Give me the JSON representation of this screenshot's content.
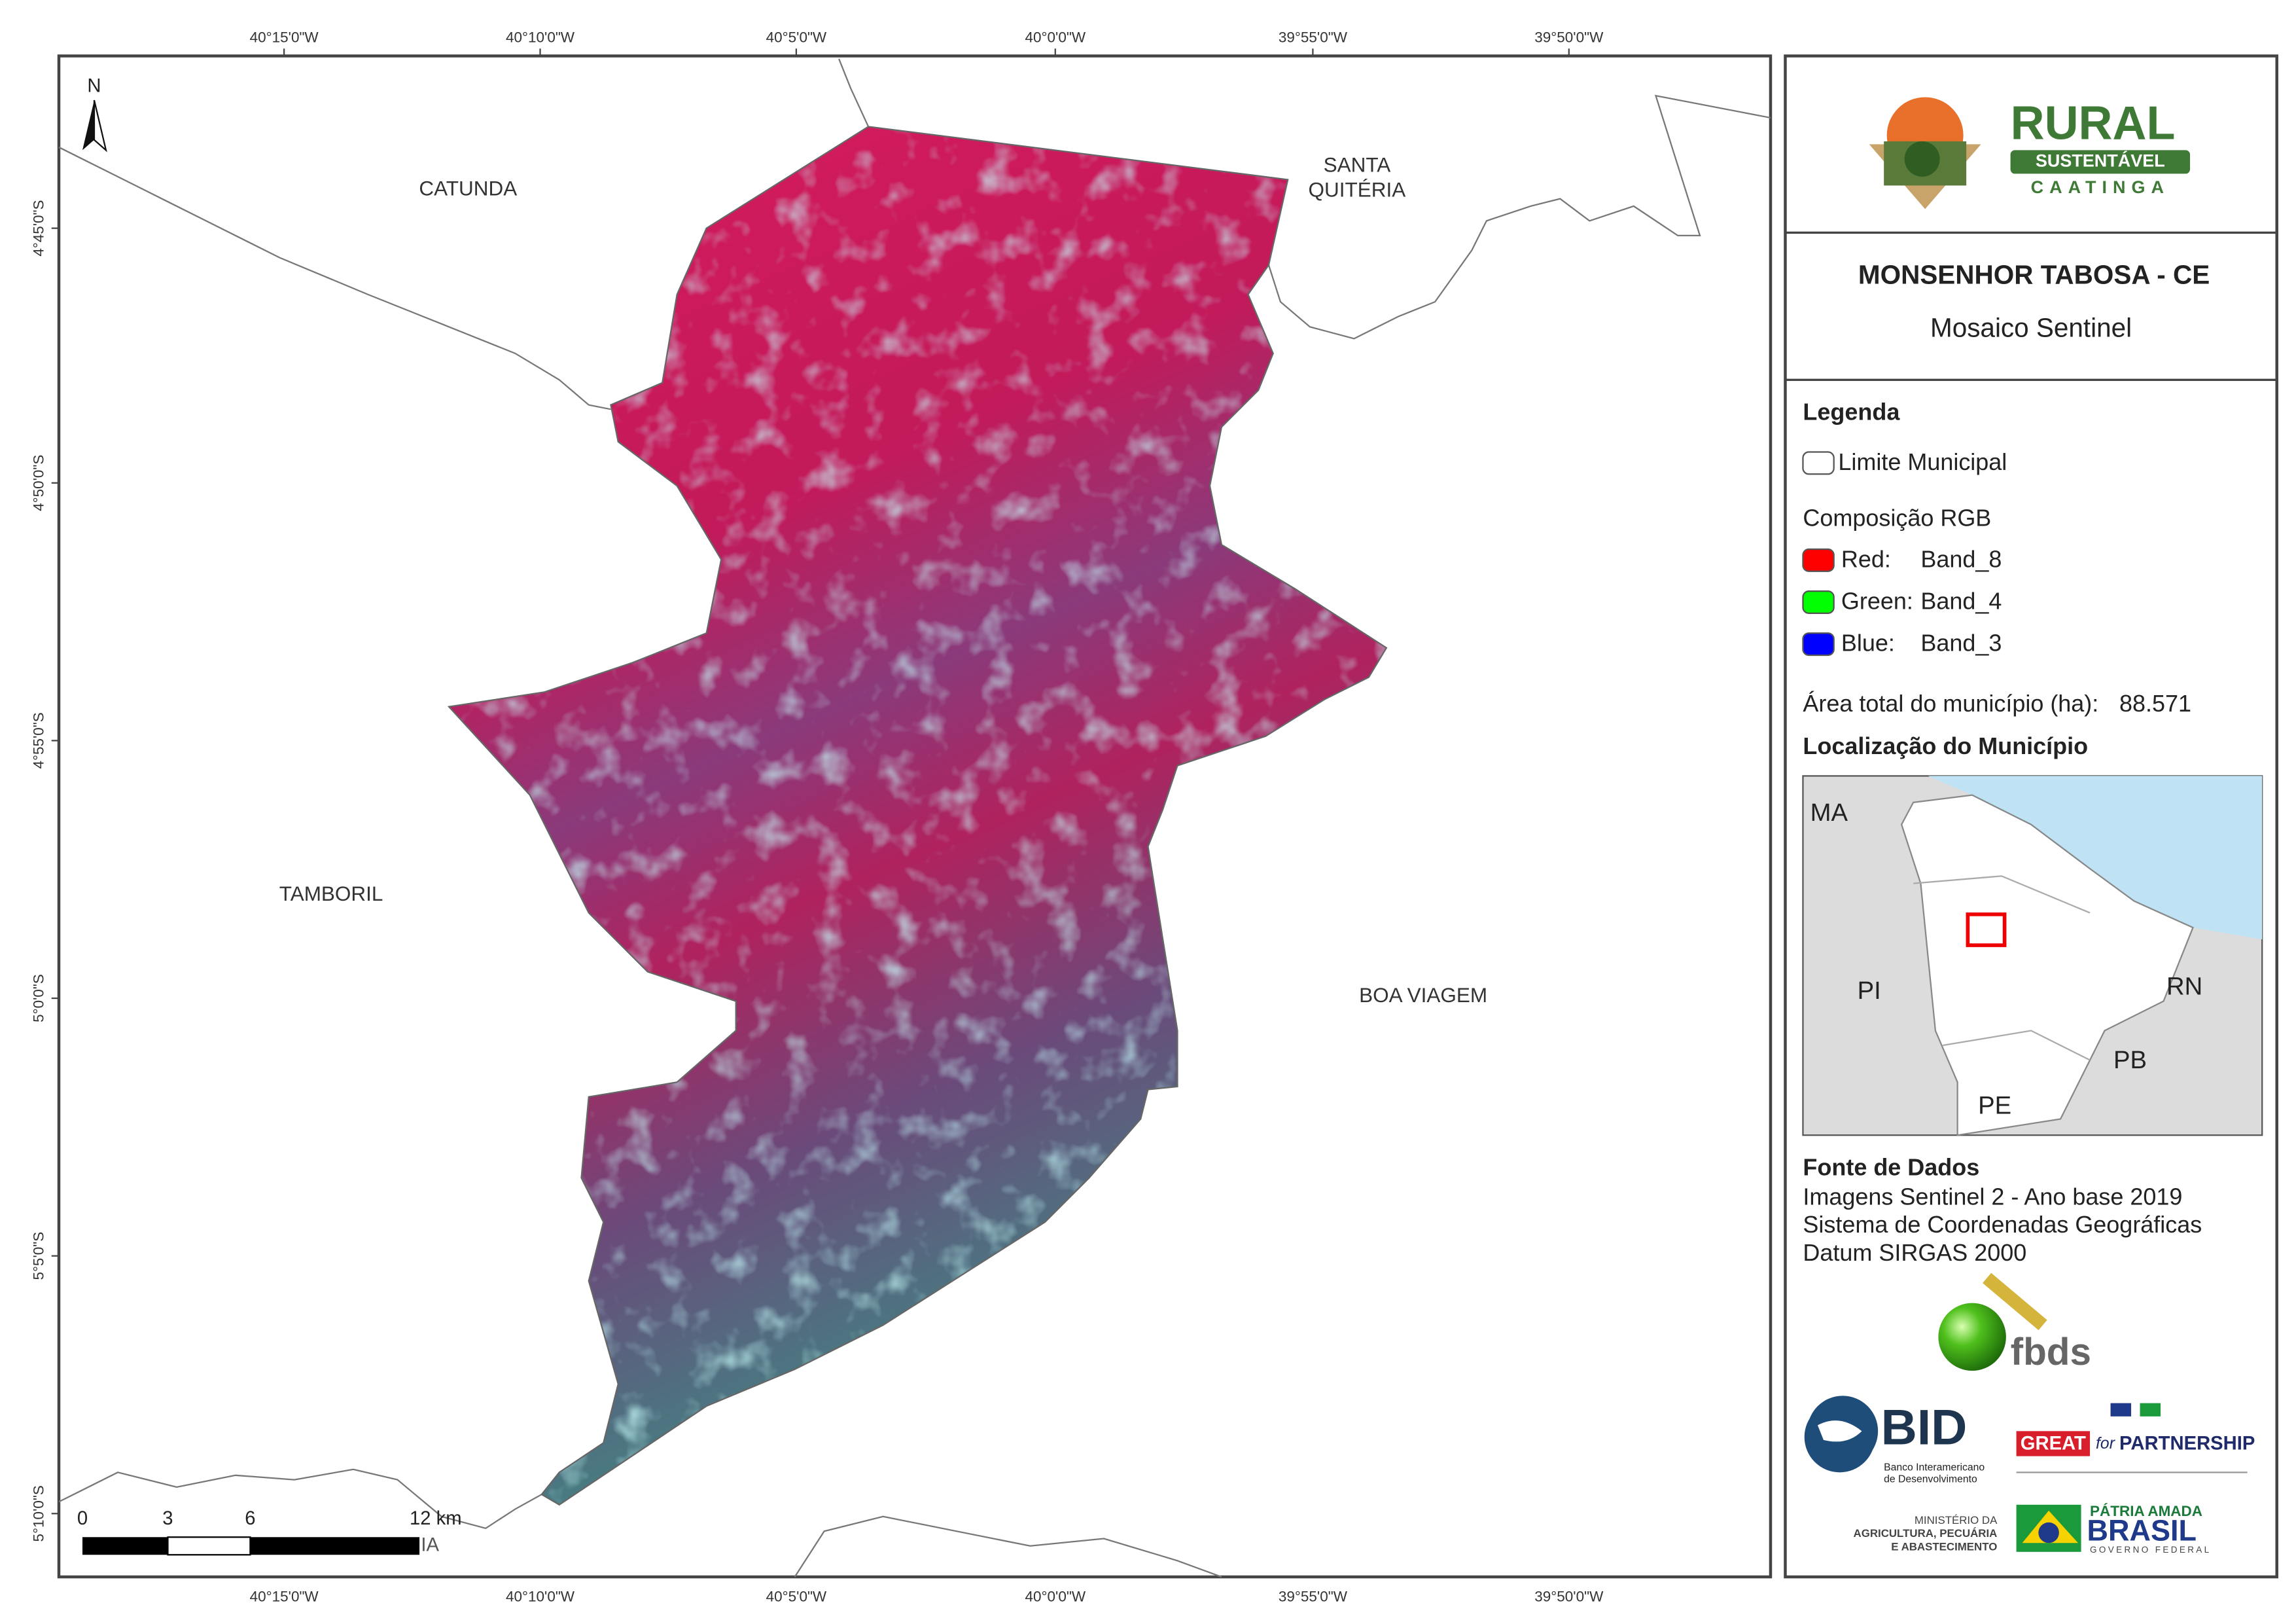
{
  "map": {
    "graticule": {
      "longitude": [
        "40°15'0\"W",
        "40°10'0\"W",
        "40°5'0\"W",
        "40°0'0\"W",
        "39°55'0\"W",
        "39°50'0\"W"
      ],
      "latitude": [
        "4°45'0\"S",
        "4°50'0\"S",
        "4°55'0\"S",
        "5°0'0\"S",
        "5°5'0\"S",
        "5°10'0\"S"
      ]
    },
    "places": [
      "CATUNDA",
      "SANTA",
      "QUITÉRIA",
      "TAMBORIL",
      "BOA VIAGEM"
    ],
    "north": "N",
    "scale_bar": {
      "labels": [
        "0",
        "3",
        "6",
        "12 km"
      ],
      "cut_text": "IA"
    }
  },
  "panel": {
    "logo": {
      "rural": "RURAL",
      "sustentavel": "SUSTENTÁVEL",
      "caatinga": "CAATINGA"
    },
    "title": "MONSENHOR TABOSA - CE",
    "subtitle": "Mosaico Sentinel",
    "legend": {
      "heading": "Legenda",
      "boundary": "Limite Municipal",
      "rgb_heading": "Composição RGB",
      "bands": [
        {
          "label": "Red:",
          "band": "Band_8",
          "color": "#ff0000"
        },
        {
          "label": "Green:",
          "band": "Band_4",
          "color": "#00ff00"
        },
        {
          "label": "Blue:",
          "band": "Band_3",
          "color": "#0000ff"
        }
      ],
      "area_label": "Área total do município (ha):",
      "area_value": "88.571"
    },
    "location": {
      "heading": "Localização do Município",
      "states": [
        "MA",
        "PI",
        "RN",
        "PB",
        "PE"
      ]
    },
    "sources": {
      "heading": "Fonte de Dados",
      "lines": [
        "Imagens Sentinel 2 - Ano base 2019",
        "Sistema de Coordenadas Geográficas",
        "Datum SIRGAS 2000"
      ]
    },
    "partners": {
      "fbds": "fbds",
      "bid": "BID",
      "bid_name": [
        "Banco Interamericano",
        "de Desenvolvimento"
      ],
      "great": "GREAT",
      "for": "for",
      "partnership": "PARTNERSHIP",
      "ministry": [
        "MINISTÉRIO DA",
        "AGRICULTURA, PECUÁRIA",
        "E ABASTECIMENTO"
      ],
      "brasil_top": "PÁTRIA AMADA",
      "brasil": "BRASIL",
      "governo": "GOVERNO FEDERAL"
    }
  }
}
